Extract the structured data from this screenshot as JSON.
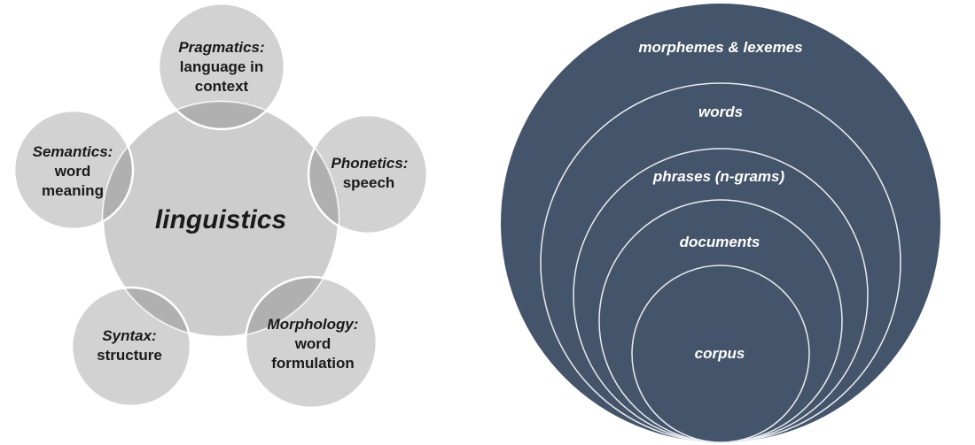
{
  "left_diagram": {
    "center": "linguistics",
    "nodes": [
      {
        "id": "pragmatics",
        "title": "Pragmatics:",
        "lines": [
          "language in",
          "context"
        ]
      },
      {
        "id": "phonetics",
        "title": "Phonetics:",
        "lines": [
          "speech"
        ]
      },
      {
        "id": "morphology",
        "title": "Morphology:",
        "lines": [
          "word",
          "formulation"
        ]
      },
      {
        "id": "syntax",
        "title": "Syntax:",
        "lines": [
          "structure"
        ]
      },
      {
        "id": "semantics",
        "title": "Semantics:",
        "lines": [
          "word",
          "meaning"
        ]
      }
    ]
  },
  "right_diagram": {
    "levels": [
      "morphemes & lexemes",
      "words",
      "phrases (n-grams)",
      "documents",
      "corpus"
    ]
  },
  "colors": {
    "petal_fill": "#d2d2d2",
    "center_fill": "#cfcfcf",
    "overlap_fill": "#aaaaaa",
    "ring_fill": "#44546a",
    "ring_stroke": "#e8ecf1",
    "text_dark": "#1a1a1a",
    "text_light": "#ffffff"
  }
}
